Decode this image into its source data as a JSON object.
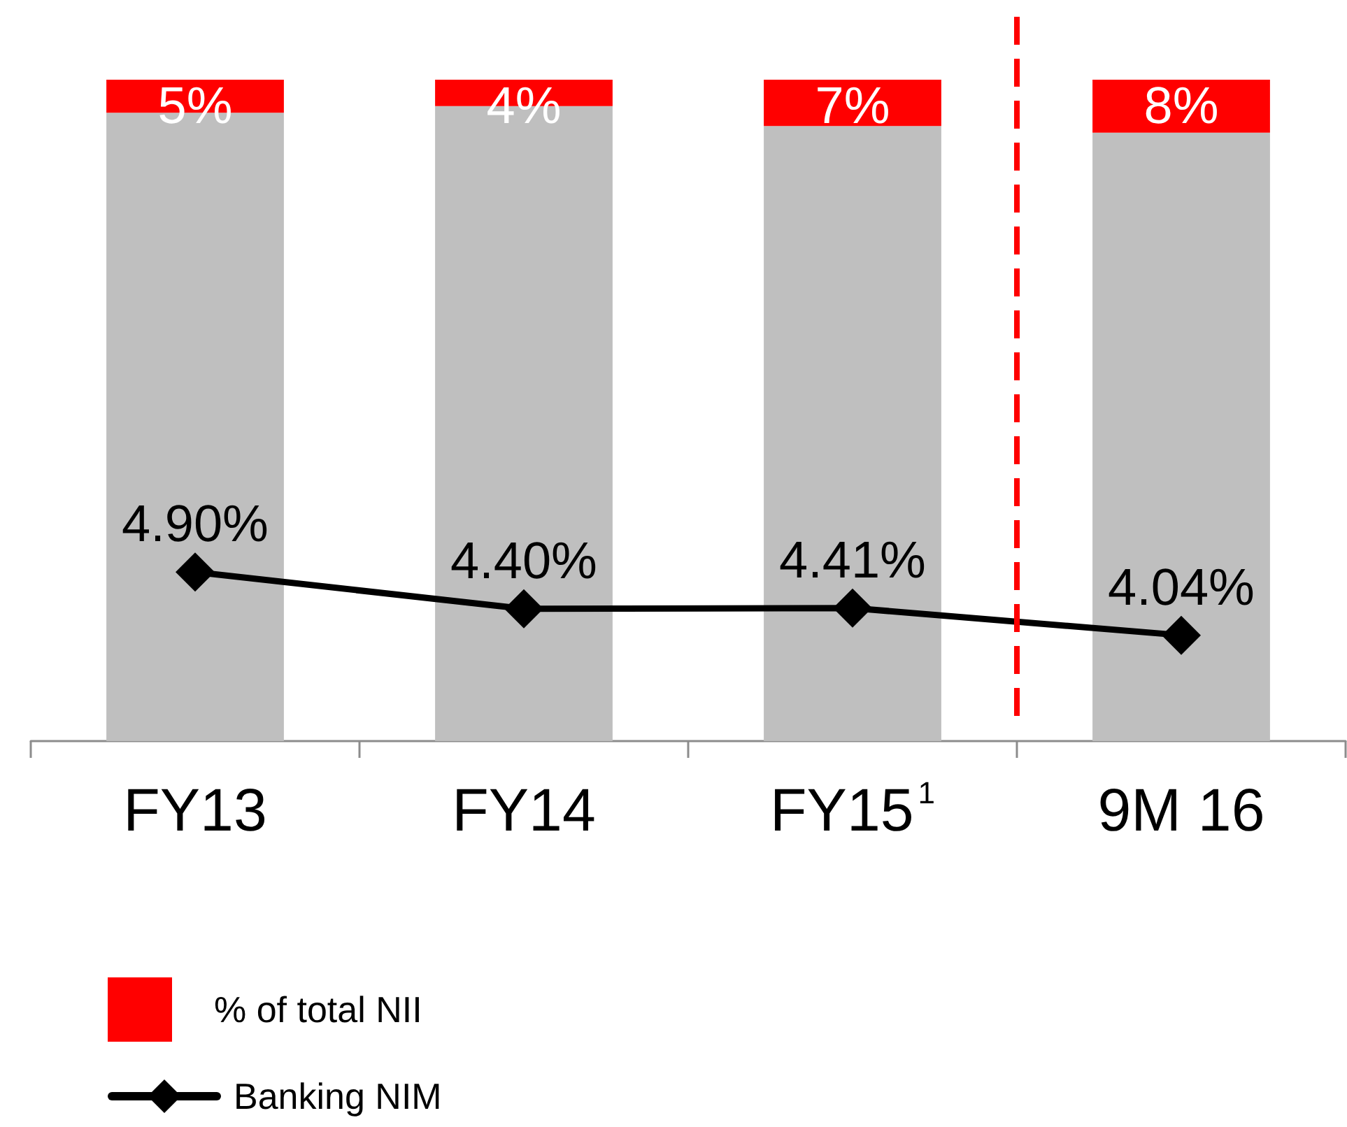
{
  "chart_data": {
    "type": "bar",
    "stacked": true,
    "categories": [
      "FY13",
      "FY14",
      "FY15$^{1}$",
      "9M 16"
    ],
    "ylim": [
      0,
      100
    ],
    "y2lim": [
      2.6,
      11.6
    ],
    "tick_labels": "x",
    "legend": "bottom left",
    "marker": "diamond",
    "line_style": "solid",
    "series": [
      {
        "color": "#bfbfbf",
        "values": [
          95,
          96,
          93,
          92
        ]
      },
      {
        "name": "% of total NII",
        "color": "#ff0000",
        "values": [
          5,
          4,
          7,
          8
        ],
        "value_labels": [
          "5%",
          "4%",
          "7%",
          "8%"
        ]
      },
      {
        "name": "Banking NIM",
        "type": "line",
        "axis": "y2",
        "color": "#000000",
        "values": [
          4.9,
          4.4,
          4.41,
          4.04
        ],
        "value_labels": [
          "4.90%",
          "4.40%",
          "4.41%",
          "4.04%"
        ]
      }
    ]
  }
}
